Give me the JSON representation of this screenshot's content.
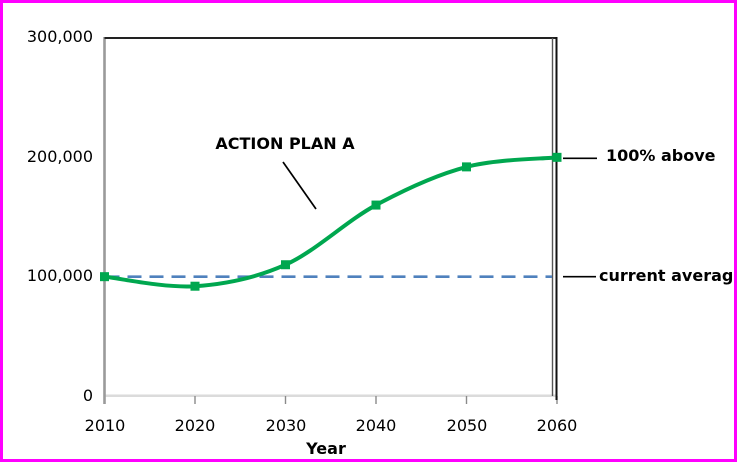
{
  "labels": {
    "series_annotation": "ACTION PLAN A",
    "end_label": "100% above",
    "reference_label": "current average"
  },
  "colors": {
    "page_border": "#ff00ff",
    "series": "#00a74f",
    "reference_line": "#4f81bd",
    "frame_dark": "#222222",
    "axis_gray": "#9a9a9a",
    "bottom_axis": "#cfcfcf",
    "text": "#000000"
  },
  "chart_data": {
    "type": "line",
    "title": "",
    "xlabel": "Year",
    "ylabel": "",
    "x": [
      2010,
      2020,
      2030,
      2040,
      2050,
      2060
    ],
    "series": [
      {
        "name": "ACTION PLAN A",
        "values": [
          100000,
          92000,
          110000,
          160000,
          192000,
          200000
        ],
        "color": "#00a74f",
        "marker": "square",
        "smooth": true
      }
    ],
    "reference_line": {
      "label": "current average",
      "value": 100000,
      "color": "#4f81bd",
      "style": "dashed"
    },
    "end_annotation": {
      "text": "100% above",
      "x": 2060,
      "value": 200000
    },
    "xlim": [
      2010,
      2060
    ],
    "ylim": [
      0,
      300000
    ],
    "ytick_labels": [
      "300,000",
      "200,000",
      "100,000",
      "0"
    ],
    "xtick_labels": [
      "2010",
      "2020",
      "2030",
      "2040",
      "2050",
      "2060"
    ],
    "grid": false,
    "legend": "none"
  }
}
